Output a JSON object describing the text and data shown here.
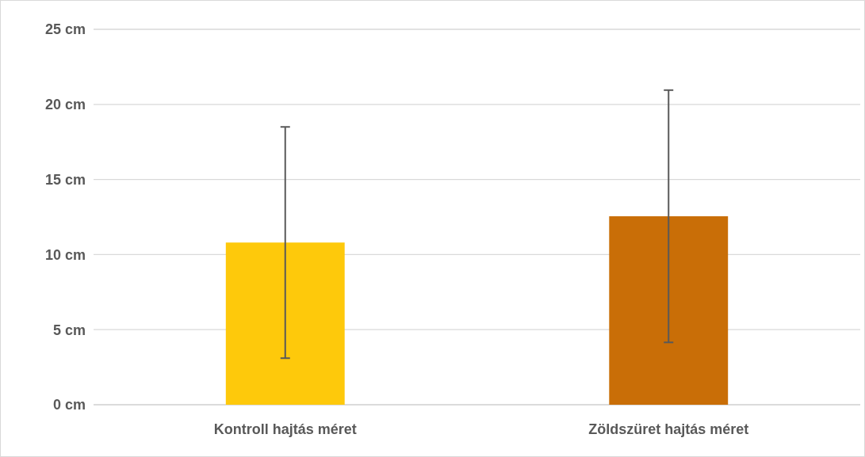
{
  "chart_data": {
    "type": "bar",
    "categories": [
      "Kontroll hajtás méret",
      "Zöldszüret hajtás méret"
    ],
    "values": [
      10.8,
      12.55
    ],
    "colors": [
      "#fec90b",
      "#c96e07"
    ],
    "errors": [
      7.7,
      8.4
    ],
    "ylim": [
      0,
      25
    ],
    "yticks": [
      {
        "value": 0,
        "label": "0 cm"
      },
      {
        "value": 5,
        "label": "5 cm"
      },
      {
        "value": 10,
        "label": "10 cm"
      },
      {
        "value": 15,
        "label": "15 cm"
      },
      {
        "value": 20,
        "label": "20 cm"
      },
      {
        "value": 25,
        "label": "25 cm"
      }
    ],
    "grid": true
  }
}
